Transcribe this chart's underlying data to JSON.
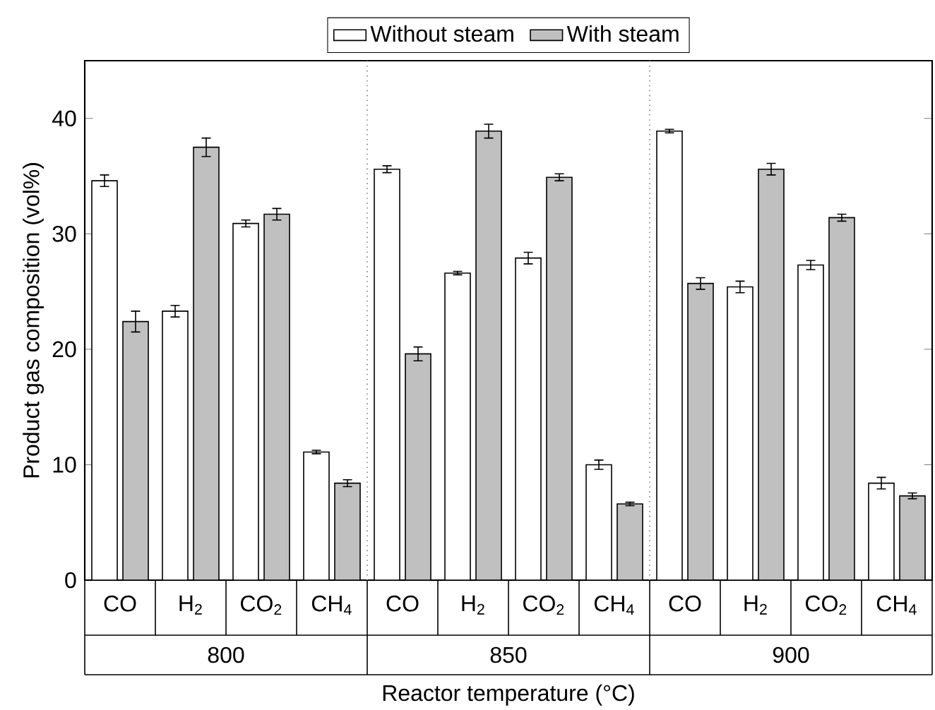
{
  "chart_data": {
    "type": "bar",
    "categories": [
      "CO",
      "H$_{2}$",
      "CO$_{2}$",
      "CH$_{4}$",
      "CO",
      "H$_{2}$",
      "CO$_{2}$",
      "CH$_{4}$",
      "CO",
      "H$_{2}$",
      "CO$_{2}$",
      "CH$_{4}$"
    ],
    "series": [
      {
        "name": "Without steam",
        "color": "#ffffff",
        "values": [
          34.6,
          23.3,
          30.9,
          11.1,
          35.6,
          26.6,
          27.9,
          10.0,
          38.9,
          25.4,
          27.3,
          8.4
        ],
        "errors": [
          0.5,
          0.5,
          0.3,
          0.15,
          0.3,
          0.15,
          0.5,
          0.4,
          0.15,
          0.5,
          0.4,
          0.5
        ]
      },
      {
        "name": "With steam",
        "color": "#c0c0c0",
        "values": [
          22.4,
          37.5,
          31.7,
          8.4,
          19.6,
          38.9,
          34.9,
          6.6,
          25.7,
          35.6,
          31.4,
          7.3
        ],
        "errors": [
          0.9,
          0.8,
          0.5,
          0.3,
          0.6,
          0.6,
          0.3,
          0.15,
          0.5,
          0.5,
          0.3,
          0.25
        ]
      }
    ],
    "ylim": [
      0,
      45
    ],
    "yticks": [
      0,
      10,
      20,
      30,
      40
    ],
    "ylabel": "Product gas composition (vol%)",
    "xlabel": "Reactor temperature (°C)",
    "annotations": [
      "800",
      "850",
      "900"
    ],
    "legend": "top"
  }
}
